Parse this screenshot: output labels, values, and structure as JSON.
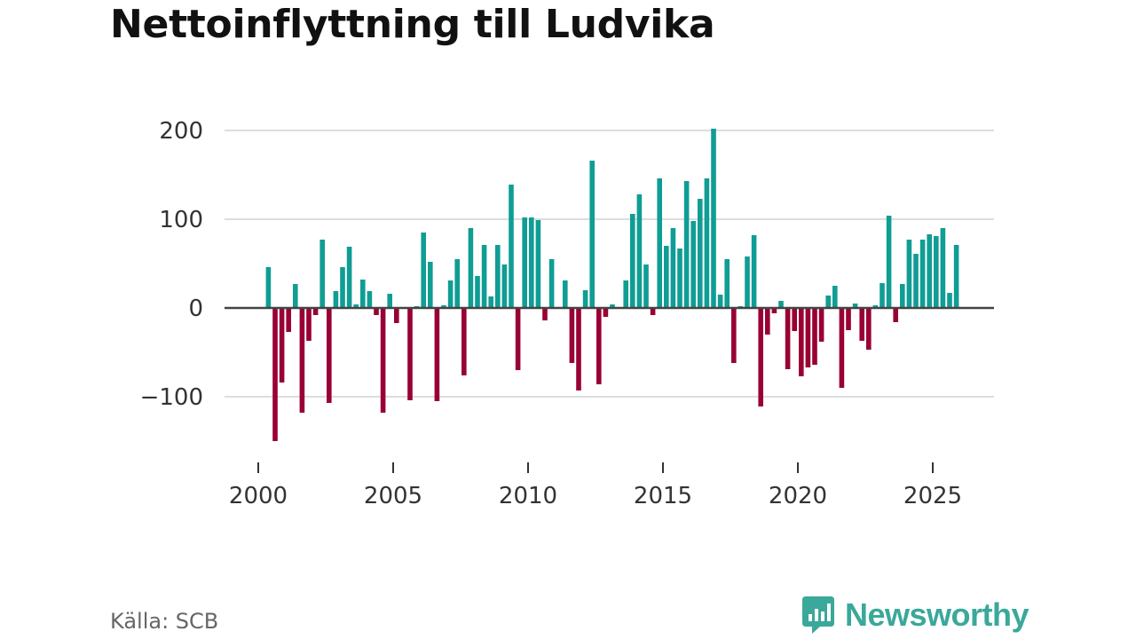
{
  "title": "Nettoinflyttning till Ludvika",
  "source": "Källa: SCB",
  "brand": {
    "name": "Newsworthy",
    "icon": "newsworthy-logo-icon"
  },
  "colors": {
    "positive": "#0f9d94",
    "negative": "#990033",
    "grid": "#dddddd",
    "zero_line": "#444444",
    "text": "#333333",
    "brand": "#3aa89a"
  },
  "chart_data": {
    "type": "bar",
    "title": "Nettoinflyttning till Ludvika",
    "xlabel": "",
    "ylabel": "",
    "xlim": [
      1999,
      2027
    ],
    "ylim": [
      -160,
      225
    ],
    "yticks": [
      200,
      100,
      0,
      -100
    ],
    "ytick_labels": [
      "200",
      "100",
      "0",
      "−100"
    ],
    "xticks": [
      2000,
      2005,
      2010,
      2015,
      2020,
      2025
    ],
    "xtick_labels": [
      "2000",
      "2005",
      "2010",
      "2015",
      "2020",
      "2025"
    ],
    "grid": true,
    "start": 2000.375,
    "step": 0.25,
    "values": [
      46,
      -150,
      -84,
      -27,
      27,
      -118,
      -37,
      -8,
      77,
      -107,
      19,
      46,
      69,
      4,
      32,
      19,
      -8,
      -118,
      16,
      -17,
      0,
      -104,
      2,
      85,
      52,
      -105,
      3,
      31,
      55,
      -76,
      90,
      36,
      71,
      13,
      71,
      49,
      139,
      -70,
      102,
      102,
      99,
      -14,
      55,
      0,
      31,
      -62,
      -93,
      20,
      166,
      -86,
      -10,
      4,
      0,
      31,
      106,
      128,
      49,
      -8,
      146,
      70,
      90,
      67,
      143,
      98,
      123,
      146,
      202,
      15,
      55,
      -62,
      2,
      58,
      82,
      -111,
      -30,
      -6,
      8,
      -69,
      -26,
      -77,
      -67,
      -64,
      -38,
      14,
      25,
      -90,
      -25,
      5,
      -37,
      -47,
      3,
      28,
      104,
      -16,
      27,
      77,
      61,
      77,
      83,
      81,
      90,
      17,
      71
    ]
  }
}
